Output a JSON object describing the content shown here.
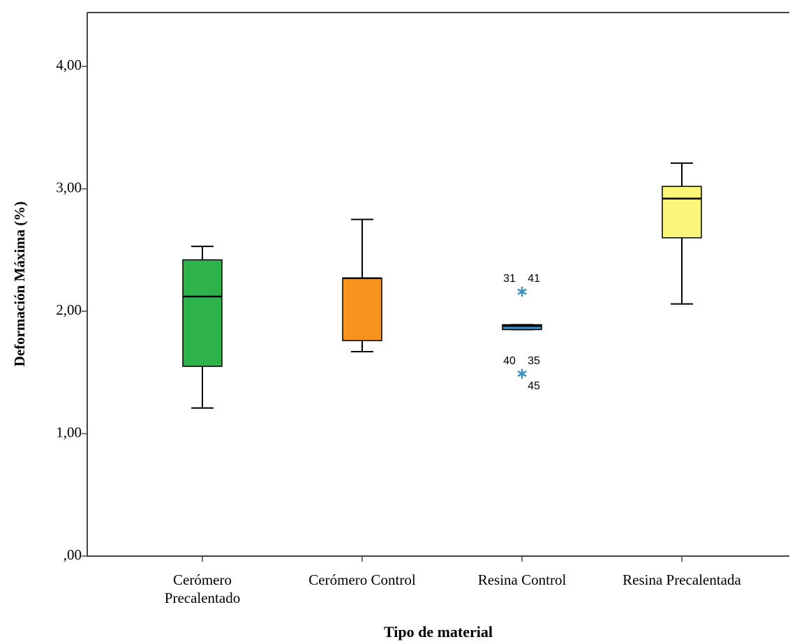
{
  "chart_data": {
    "type": "boxplot",
    "y_label": "Deformación Máxima (%)",
    "x_label": "Tipo de material",
    "ylim": [
      0,
      4.44
    ],
    "yticks": [
      {
        "value": 0,
        "label": ",00"
      },
      {
        "value": 1,
        "label": "1,00"
      },
      {
        "value": 2,
        "label": "2,00"
      },
      {
        "value": 3,
        "label": "3,00"
      },
      {
        "value": 4,
        "label": "4,00"
      }
    ],
    "categories": [
      "Cerómero Precalentado",
      "Cerómero Control",
      "Resina Control",
      "Resina Precalentada"
    ],
    "series": [
      {
        "color": "#2db34a",
        "min": 1.21,
        "q1": 1.55,
        "median": 2.12,
        "q3": 2.42,
        "max": 2.53,
        "outliers": []
      },
      {
        "color": "#f7941d",
        "min": 1.67,
        "q1": 1.76,
        "median": 2.27,
        "q3": 2.27,
        "max": 2.75,
        "outliers": []
      },
      {
        "color": "#3b8fc6",
        "min": 1.85,
        "q1": 1.85,
        "median": 1.88,
        "q3": 1.89,
        "max": 1.89,
        "outliers": [
          {
            "value": 2.16,
            "labels": [
              "31",
              "41"
            ]
          },
          {
            "value": 1.49,
            "labels": [
              "40",
              "35",
              "45"
            ]
          }
        ]
      },
      {
        "color": "#fbf57a",
        "min": 2.06,
        "q1": 2.6,
        "median": 2.92,
        "q3": 3.02,
        "max": 3.21,
        "outliers": []
      }
    ]
  }
}
